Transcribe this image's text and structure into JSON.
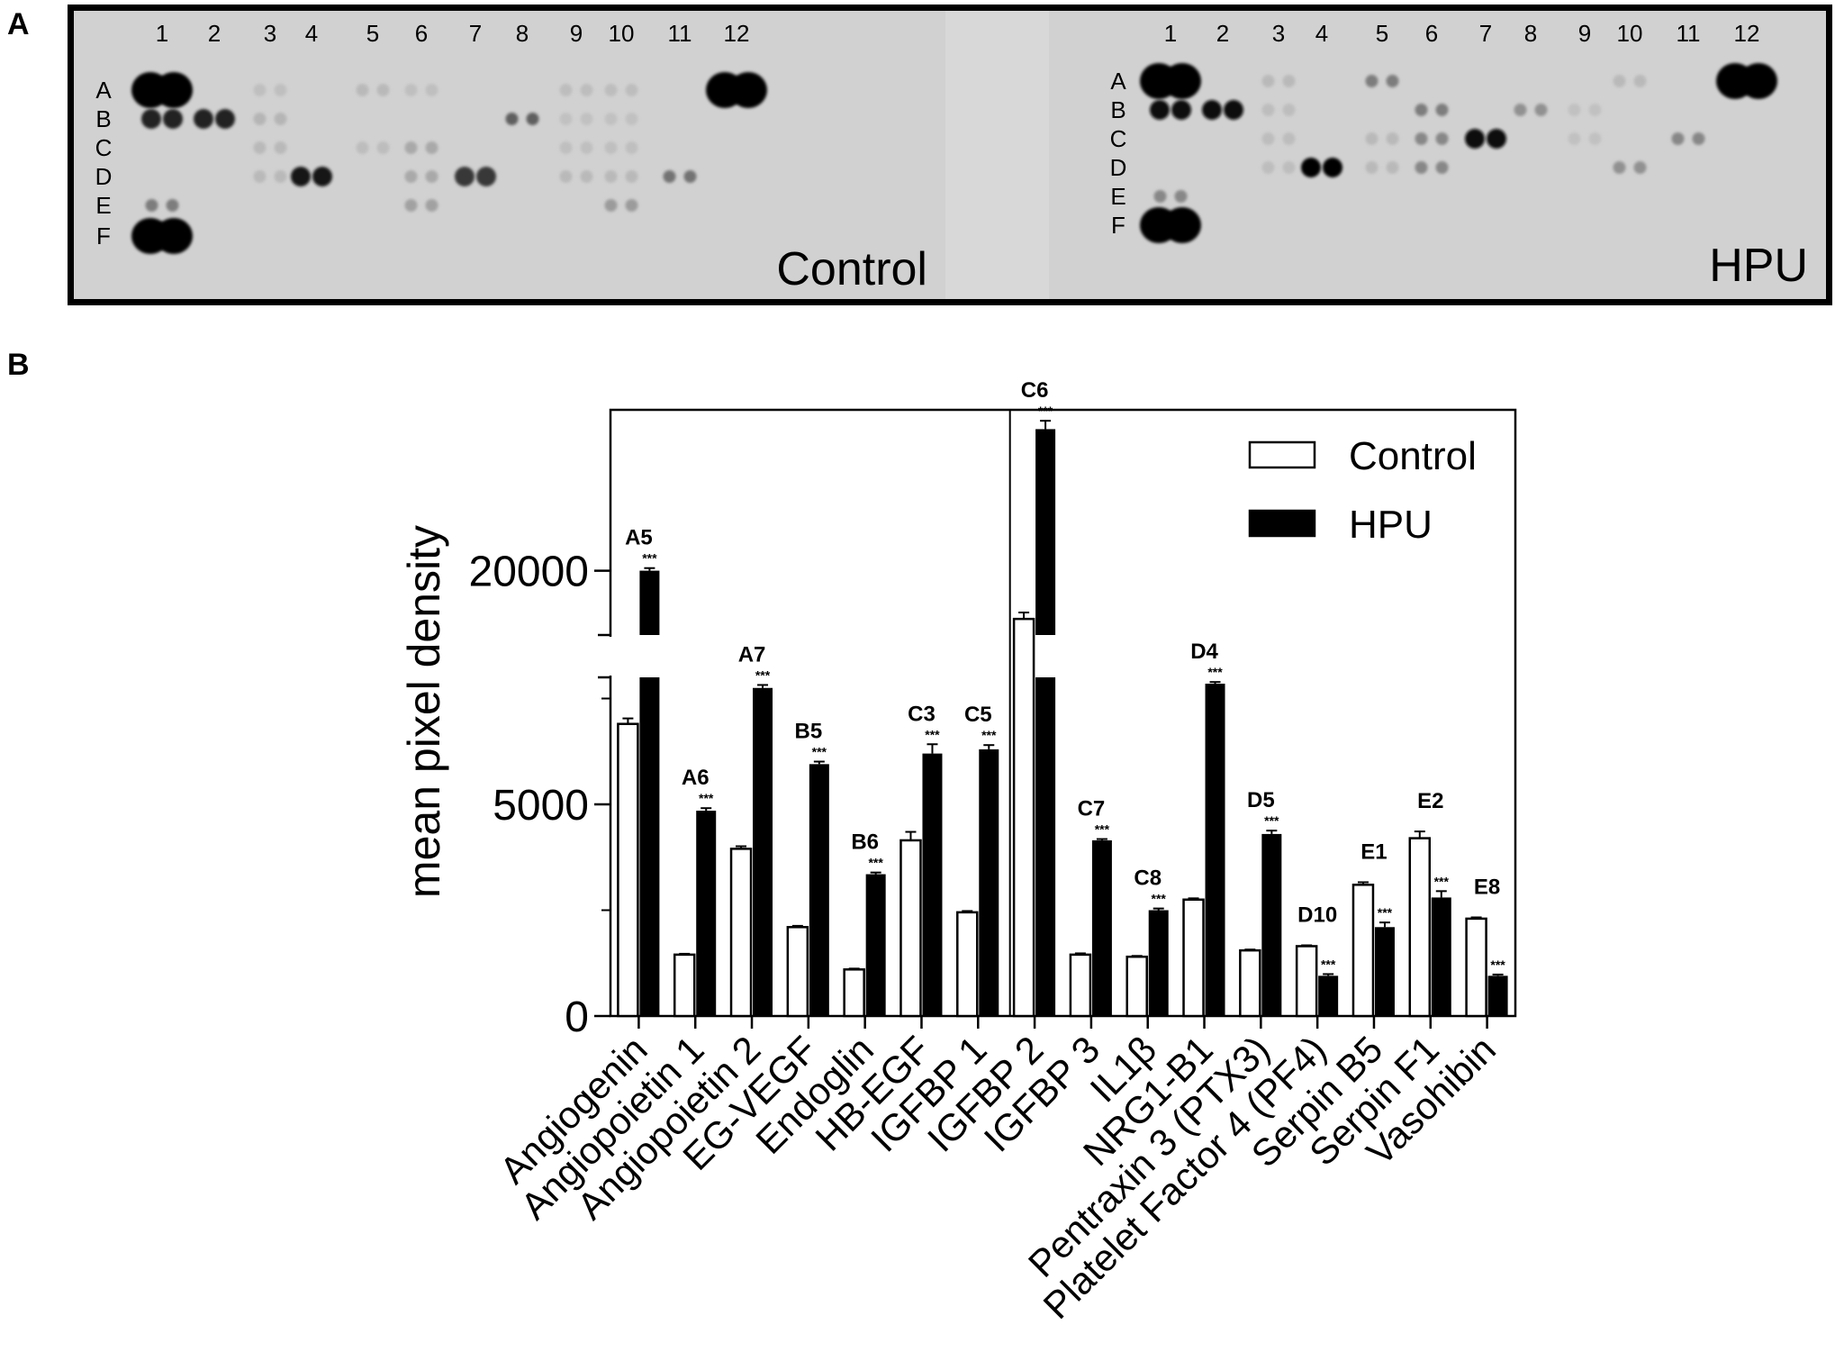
{
  "panel_a": {
    "label": "A",
    "lane_numbers": [
      "1",
      "2",
      "3",
      "4",
      "5",
      "6",
      "7",
      "8",
      "9",
      "10",
      "11",
      "12"
    ],
    "row_letters": [
      "A",
      "B",
      "C",
      "D",
      "E",
      "F"
    ],
    "blots": [
      {
        "name": "Control",
        "spots": [
          {
            "row": "A",
            "col": 1,
            "i": 1.0
          },
          {
            "row": "A",
            "col": 12,
            "i": 1.0
          },
          {
            "row": "F",
            "col": 1,
            "i": 1.0
          },
          {
            "row": "B",
            "col": 1,
            "i": 0.85
          },
          {
            "row": "B",
            "col": 2,
            "i": 0.85
          },
          {
            "row": "D",
            "col": 4,
            "i": 0.9
          },
          {
            "row": "D",
            "col": 7,
            "i": 0.75
          },
          {
            "row": "B",
            "col": 8,
            "i": 0.55
          },
          {
            "row": "D",
            "col": 11,
            "i": 0.45
          },
          {
            "row": "E",
            "col": 1,
            "i": 0.4
          },
          {
            "row": "E",
            "col": 10,
            "i": 0.25
          },
          {
            "row": "C",
            "col": 6,
            "i": 0.18
          },
          {
            "row": "D",
            "col": 6,
            "i": 0.18
          },
          {
            "row": "E",
            "col": 6,
            "i": 0.22
          },
          {
            "row": "C",
            "col": 3,
            "i": 0.1
          },
          {
            "row": "D",
            "col": 3,
            "i": 0.1
          },
          {
            "row": "B",
            "col": 3,
            "i": 0.12
          },
          {
            "row": "A",
            "col": 5,
            "i": 0.1
          },
          {
            "row": "A",
            "col": 9,
            "i": 0.08
          },
          {
            "row": "A",
            "col": 10,
            "i": 0.08
          },
          {
            "row": "C",
            "col": 5,
            "i": 0.08
          },
          {
            "row": "D",
            "col": 9,
            "i": 0.1
          },
          {
            "row": "D",
            "col": 10,
            "i": 0.1
          },
          {
            "row": "C",
            "col": 9,
            "i": 0.07
          },
          {
            "row": "C",
            "col": 10,
            "i": 0.07
          },
          {
            "row": "B",
            "col": 9,
            "i": 0.06
          },
          {
            "row": "B",
            "col": 10,
            "i": 0.06
          },
          {
            "row": "A",
            "col": 3,
            "i": 0.07
          },
          {
            "row": "A",
            "col": 6,
            "i": 0.07
          }
        ]
      },
      {
        "name": "HPU",
        "spots": [
          {
            "row": "A",
            "col": 1,
            "i": 1.0
          },
          {
            "row": "A",
            "col": 12,
            "i": 1.0
          },
          {
            "row": "F",
            "col": 1,
            "i": 1.0
          },
          {
            "row": "B",
            "col": 1,
            "i": 0.95
          },
          {
            "row": "B",
            "col": 2,
            "i": 0.95
          },
          {
            "row": "D",
            "col": 4,
            "i": 1.0
          },
          {
            "row": "C",
            "col": 7,
            "i": 0.95
          },
          {
            "row": "A",
            "col": 5,
            "i": 0.4
          },
          {
            "row": "B",
            "col": 8,
            "i": 0.3
          },
          {
            "row": "C",
            "col": 11,
            "i": 0.35
          },
          {
            "row": "D",
            "col": 10,
            "i": 0.3
          },
          {
            "row": "E",
            "col": 1,
            "i": 0.35
          },
          {
            "row": "B",
            "col": 6,
            "i": 0.4
          },
          {
            "row": "C",
            "col": 6,
            "i": 0.35
          },
          {
            "row": "D",
            "col": 6,
            "i": 0.35
          },
          {
            "row": "C",
            "col": 3,
            "i": 0.08
          },
          {
            "row": "D",
            "col": 3,
            "i": 0.08
          },
          {
            "row": "A",
            "col": 3,
            "i": 0.1
          },
          {
            "row": "A",
            "col": 10,
            "i": 0.1
          },
          {
            "row": "C",
            "col": 5,
            "i": 0.1
          },
          {
            "row": "D",
            "col": 5,
            "i": 0.1
          },
          {
            "row": "B",
            "col": 3,
            "i": 0.08
          },
          {
            "row": "C",
            "col": 9,
            "i": 0.06
          },
          {
            "row": "B",
            "col": 9,
            "i": 0.06
          }
        ]
      }
    ]
  },
  "panel_b": {
    "label": "B",
    "ylabel": "mean pixel density",
    "yticks": [
      "0",
      "5000",
      "20000"
    ],
    "legend": [
      {
        "name": "Control",
        "fill": "#ffffff"
      },
      {
        "name": "HPU",
        "fill": "#000000"
      }
    ],
    "significance": "***"
  },
  "chart_data": {
    "type": "bar",
    "title": "",
    "xlabel": "",
    "ylabel": "mean pixel density",
    "y_axis_break": {
      "from": 8000,
      "to": 19000
    },
    "ylim": [
      0,
      22500
    ],
    "categories": [
      "Angiogenin",
      "Angiopoietin 1",
      "Angiopoietin 2",
      "EG-VEGF",
      "Endoglin",
      "HB-EGF",
      "IGFBP 1",
      "IGFBP 2",
      "IGFBP 3",
      "IL1β",
      "NRG1-B1",
      "Pentraxin 3 (PTX3)",
      "Platelet Factor 4 (PF4)",
      "Serpin B5",
      "Serpin F1",
      "Vasohibin"
    ],
    "spot_labels": [
      "A5",
      "A6",
      "A7",
      "B5",
      "B6",
      "C3",
      "C5",
      "C6",
      "C7",
      "C8",
      "D4",
      "D5",
      "D10",
      "E1",
      "E2",
      "E8"
    ],
    "series": [
      {
        "name": "Control",
        "values": [
          6900,
          1450,
          3950,
          2100,
          1100,
          4150,
          2450,
          19250,
          1450,
          1400,
          2750,
          1550,
          1650,
          3100,
          4200,
          2300
        ],
        "errors": [
          130,
          20,
          60,
          30,
          20,
          200,
          30,
          100,
          30,
          20,
          30,
          20,
          20,
          60,
          160,
          30
        ]
      },
      {
        "name": "HPU",
        "values": [
          20000,
          4850,
          7750,
          5950,
          3350,
          6200,
          6300,
          22200,
          4150,
          2500,
          7850,
          4300,
          950,
          2100,
          2800,
          950
        ],
        "errors": [
          40,
          60,
          70,
          60,
          40,
          220,
          100,
          130,
          30,
          40,
          40,
          80,
          40,
          110,
          150,
          30
        ]
      }
    ],
    "significance": [
      "***",
      "***",
      "***",
      "***",
      "***",
      "***",
      "***",
      "***",
      "***",
      "***",
      "***",
      "***",
      "***",
      "***",
      "***",
      "***"
    ]
  }
}
